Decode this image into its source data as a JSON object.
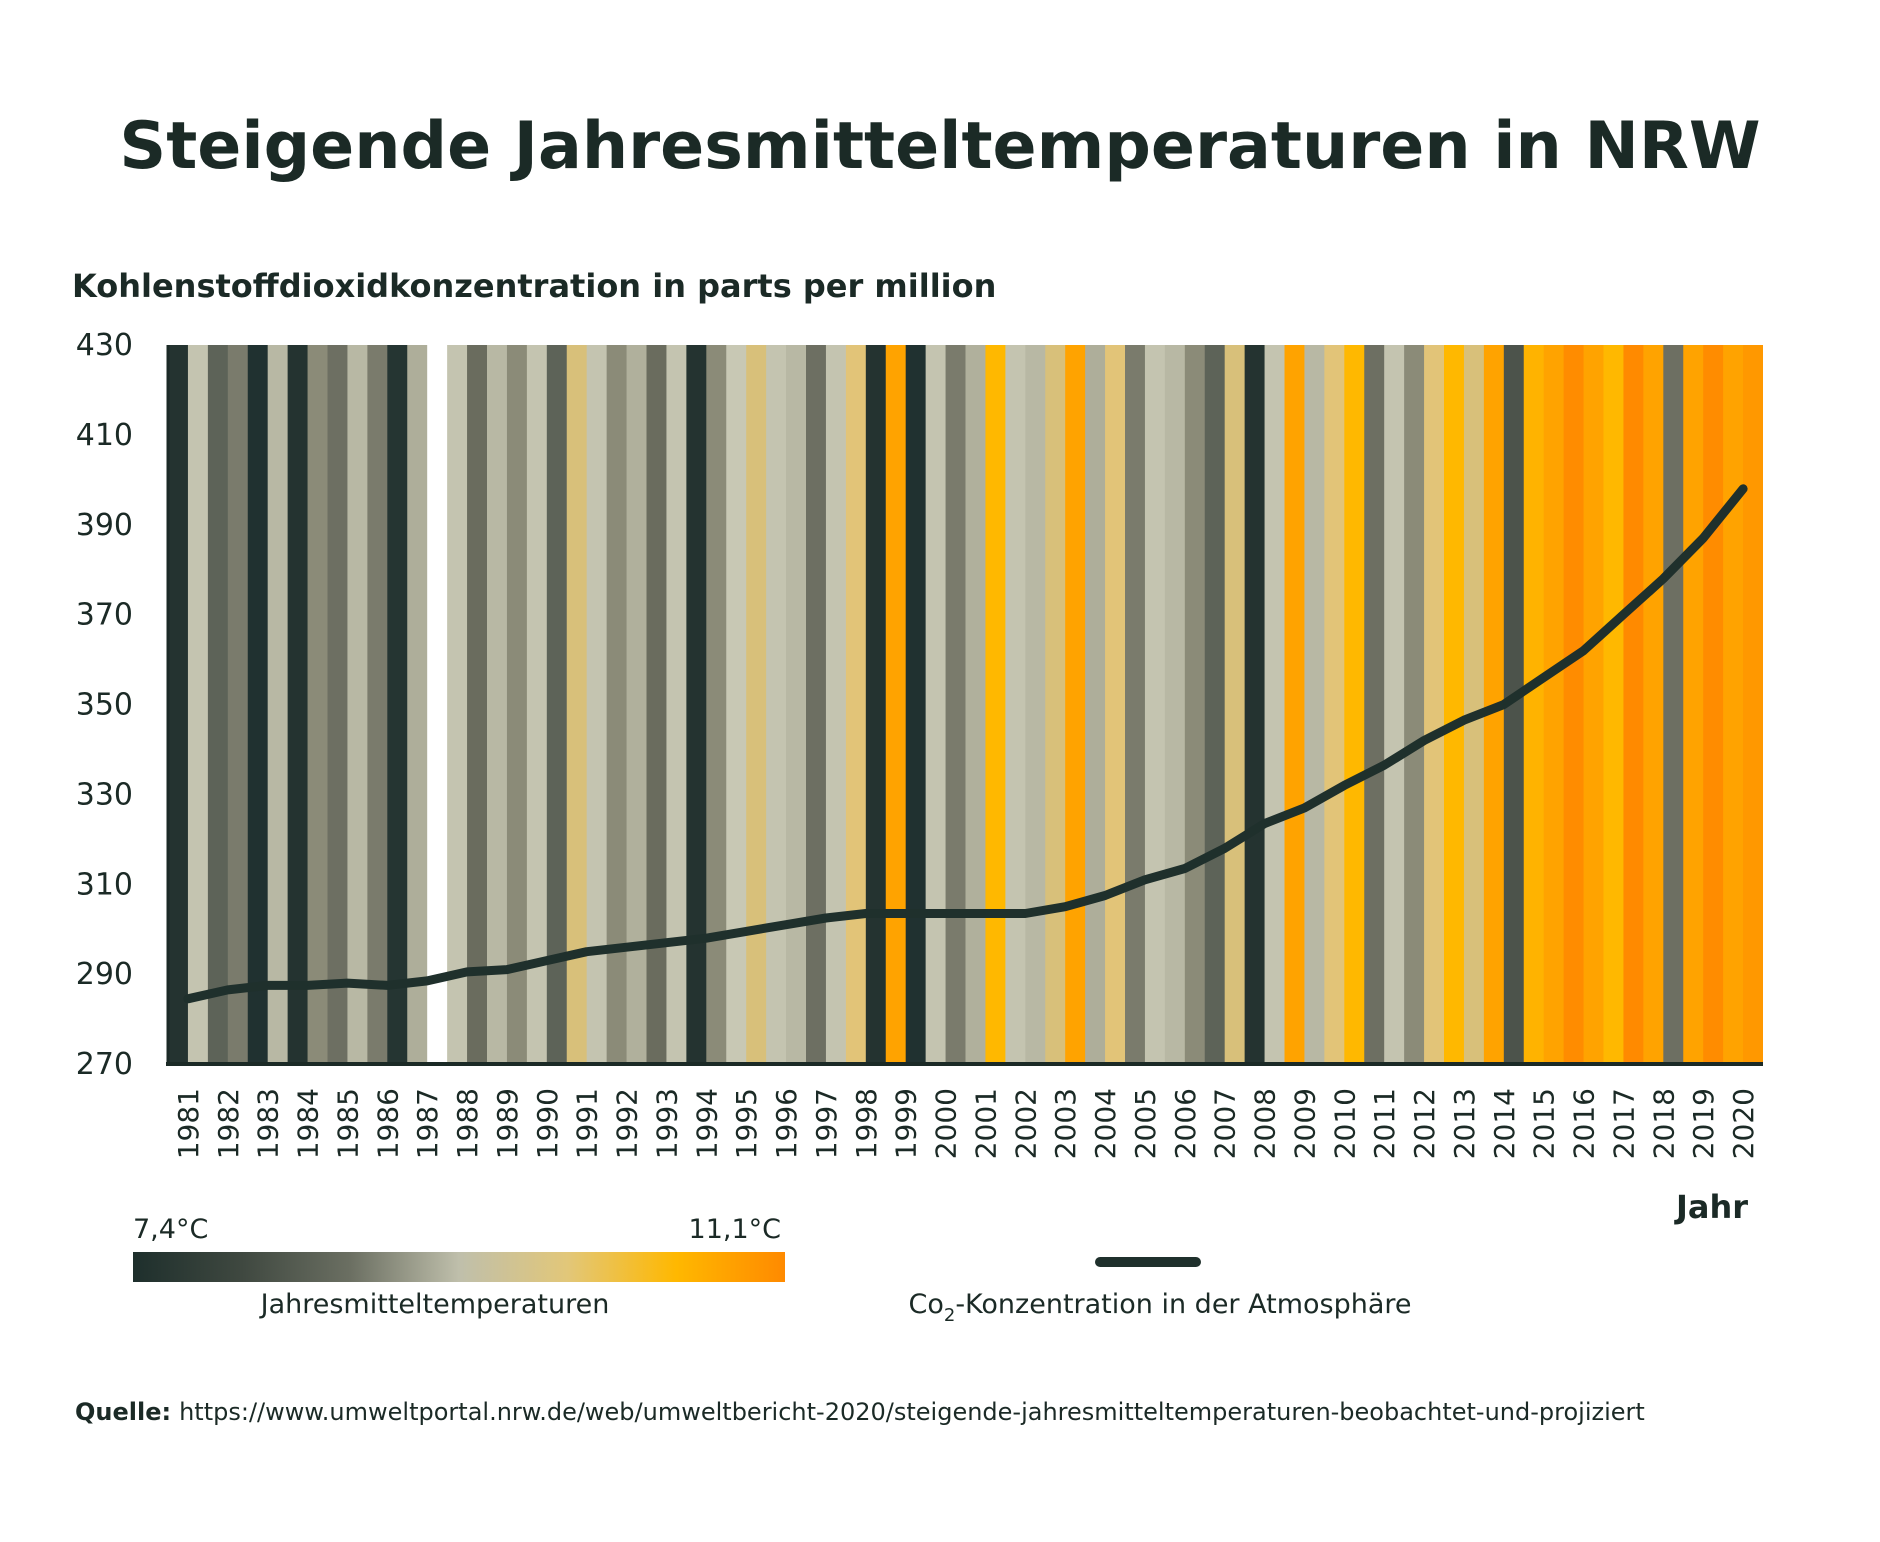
{
  "chart_data": {
    "type": "bar",
    "title": "Steigende Jahresmitteltemperaturen in NRW",
    "ylabel": "Kohlenstoffdioxidkonzentration in parts per million",
    "xlabel": "Jahr",
    "ylim": [
      270,
      430
    ],
    "yticks": [
      "430",
      "410",
      "390",
      "370",
      "350",
      "330",
      "310",
      "290",
      "270"
    ],
    "grid": false,
    "years": [
      "1981",
      "1982",
      "1983",
      "1984",
      "1985",
      "1986",
      "1987",
      "1988",
      "1989",
      "1990",
      "1991",
      "1992",
      "1993",
      "1994",
      "1995",
      "1996",
      "1997",
      "1998",
      "1999",
      "2000",
      "2001",
      "2002",
      "2003",
      "2004",
      "2005",
      "2006",
      "2007",
      "2008",
      "2009",
      "2010",
      "2011",
      "2012",
      "2013",
      "2014",
      "2015",
      "2016",
      "2017",
      "2018",
      "2019",
      "2020"
    ],
    "stripe_colors": [
      "#243330",
      "#c4c4b0",
      "#5d6358",
      "#7a7b6c",
      "#203130",
      "#b8b8a4",
      "#243330",
      "#8b8b78",
      "#6d6f62",
      "#b8b8a4",
      "#7a7b6c",
      "#253532",
      "#aeae9a",
      "#ffffff",
      "#c4c4b0",
      "#6a6c5e",
      "#b8b8a4",
      "#8b8b78",
      "#c4c4b0",
      "#5d6358",
      "#d8c07a",
      "#c4c4b0",
      "#8b8b78",
      "#b0b09c",
      "#6a6c5e",
      "#c4c4b0",
      "#243330",
      "#8b8b78",
      "#c8c8b4",
      "#d8c07a",
      "#c4c4b0",
      "#b8b8a4",
      "#6d6f62",
      "#c4c4b0",
      "#e2c478",
      "#243330",
      "#ffa300",
      "#203130",
      "#c4c4b0",
      "#7a7b6c",
      "#b0b09c",
      "#ffb800",
      "#c4c4b0",
      "#b8b8a4",
      "#d8c07a",
      "#ffa300",
      "#aeae9a",
      "#e2c478",
      "#7a7b6c",
      "#c4c4b0",
      "#b8b8a4",
      "#8b8b78",
      "#5d6358",
      "#d8c07a",
      "#243330",
      "#c4c4b0",
      "#ffa300",
      "#b8b8a4",
      "#e2c478",
      "#ffb800",
      "#6d6f62",
      "#c4c4b0",
      "#8b8b78",
      "#e2c478",
      "#ffb800",
      "#d8c07a",
      "#ffa300",
      "#4c534b",
      "#ffb300",
      "#ffa300",
      "#ff8c00",
      "#ffa300",
      "#ffb800",
      "#ff8a00",
      "#ffa300",
      "#6d6f62",
      "#ffa300",
      "#ff8c00",
      "#ffa300",
      "#ff9800"
    ],
    "series": [
      {
        "name": "Co2-Konzentration in der Atmosphäre",
        "color": "#1f302c",
        "values": [
          284.5,
          286.5,
          287.5,
          287.5,
          288,
          287.5,
          288.5,
          290.5,
          291,
          293,
          295,
          296,
          297,
          298,
          299.5,
          301,
          302.5,
          303.5,
          303.5,
          303.5,
          303.5,
          303.5,
          305,
          307.5,
          311,
          313.5,
          318,
          323.5,
          327,
          332,
          336.5,
          342,
          346.5,
          350,
          356,
          362,
          370,
          378,
          387,
          398
        ]
      }
    ]
  },
  "legend": {
    "temperature": {
      "min_label": "7,4°C",
      "max_label": "11,1°C",
      "caption": "Jahresmitteltemperaturen",
      "gradient": [
        "#1e2f2c",
        "#3f4840",
        "#6b6f62",
        "#bfbfab",
        "#e2c779",
        "#ffb800",
        "#ff8a00"
      ]
    },
    "co2": {
      "caption_prefix": "Co",
      "caption_sub": "2",
      "caption_suffix": "-Konzentration in der Atmosphäre",
      "color": "#1f302c"
    }
  },
  "source": {
    "label": "Quelle:",
    "url": "https://www.umweltportal.nrw.de/web/umweltbericht-2020/steigende-jahresmitteltemperaturen-beobachtet-und-projiziert"
  }
}
